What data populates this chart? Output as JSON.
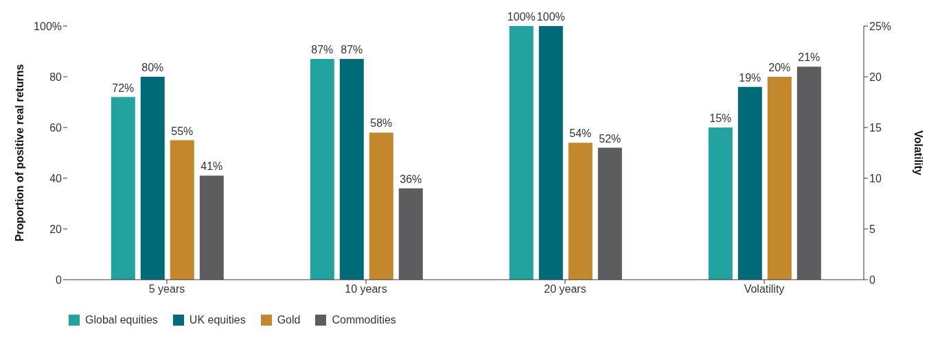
{
  "chart_data": {
    "type": "bar",
    "categories": [
      "5 years",
      "10 years",
      "20 years",
      "Volatility"
    ],
    "ylabel": "Proportion of positive real returns",
    "y2label": "Volatility",
    "ylim": [
      0,
      100
    ],
    "yticks": [
      0,
      20,
      40,
      60,
      80,
      {
        "value": 100,
        "label": "100%"
      }
    ],
    "y2lim": [
      0,
      25
    ],
    "y2ticks": [
      0,
      5,
      10,
      15,
      20,
      {
        "value": 25,
        "label": "25%"
      }
    ],
    "legend": "bottom left",
    "series": [
      {
        "name": "Global equities",
        "color": "#22a39f",
        "values": [
          72,
          87,
          100,
          null
        ],
        "value_labels": [
          "72%",
          "87%",
          "100%",
          null
        ]
      },
      {
        "name": "UK equities",
        "color": "#006b78",
        "values": [
          80,
          87,
          100,
          null
        ],
        "value_labels": [
          "80%",
          "87%",
          "100%",
          null
        ]
      },
      {
        "name": "Gold",
        "color": "#c3882c",
        "values": [
          55,
          58,
          54,
          null
        ],
        "value_labels": [
          "55%",
          "58%",
          "54%",
          null
        ]
      },
      {
        "name": "Commodities",
        "color": "#5d5d5f",
        "values": [
          41,
          36,
          52,
          null
        ],
        "value_labels": [
          "41%",
          "36%",
          "52%",
          null
        ]
      },
      {
        "color": "#22a39f",
        "axis": "y2",
        "values": [
          null,
          null,
          null,
          15
        ],
        "value_labels": [
          null,
          null,
          null,
          "15%"
        ]
      },
      {
        "color": "#006b78",
        "axis": "y2",
        "values": [
          null,
          null,
          null,
          19
        ],
        "value_labels": [
          null,
          null,
          null,
          "19%"
        ]
      },
      {
        "color": "#c3882c",
        "axis": "y2",
        "values": [
          null,
          null,
          null,
          20
        ],
        "value_labels": [
          null,
          null,
          null,
          "20%"
        ]
      },
      {
        "color": "#5d5d5f",
        "axis": "y2",
        "values": [
          null,
          null,
          null,
          21
        ],
        "value_labels": [
          null,
          null,
          null,
          "21%"
        ]
      }
    ]
  }
}
